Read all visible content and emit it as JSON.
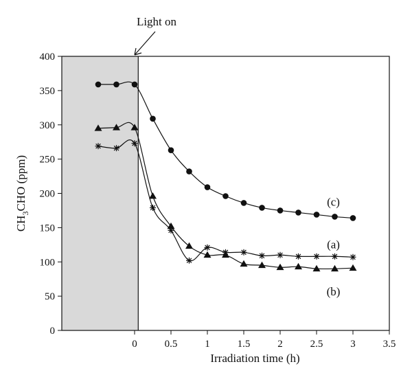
{
  "chart_data": {
    "type": "line",
    "xlabel": "Irradiation time (h)",
    "ylabel": "CH3CHO (ppm)",
    "ylabel_main": "CH",
    "ylabel_sub": "3",
    "ylabel_rest": "CHO (ppm)",
    "xlim": [
      -1,
      3.5
    ],
    "ylim": [
      0,
      400
    ],
    "x_ticks": [
      0,
      0.5,
      1,
      1.5,
      2,
      2.5,
      3,
      3.5
    ],
    "x_tick_labels": [
      "0",
      "0.5",
      "1",
      "1.5",
      "2",
      "2.5",
      "3",
      "3.5"
    ],
    "y_ticks": [
      0,
      50,
      100,
      150,
      200,
      250,
      300,
      350,
      400
    ],
    "y_tick_labels": [
      "0",
      "50",
      "100",
      "150",
      "200",
      "250",
      "300",
      "350",
      "400"
    ],
    "dark_region": {
      "x_start": -1,
      "x_end": 0.05,
      "fill": "#d9d9d9"
    },
    "annotation": {
      "text": "Light on",
      "arrow_to_x": 0
    },
    "series": [
      {
        "name": "(c)",
        "marker": "circle",
        "x": [
          -0.5,
          -0.25,
          0,
          0.25,
          0.5,
          0.75,
          1,
          1.25,
          1.5,
          1.75,
          2,
          2.25,
          2.5,
          2.75,
          3
        ],
        "y": [
          359,
          359,
          359,
          309,
          263,
          232,
          209,
          196,
          186,
          179,
          175,
          172,
          169,
          166,
          164
        ],
        "label_x": 2.75,
        "label_y": 188
      },
      {
        "name": "(a)",
        "marker": "star",
        "x": [
          -0.5,
          -0.25,
          0,
          0.25,
          0.5,
          0.75,
          1,
          1.25,
          1.5,
          1.75,
          2,
          2.25,
          2.5,
          2.75,
          3
        ],
        "y": [
          269,
          266,
          273,
          179,
          146,
          102,
          121,
          114,
          114,
          109,
          110,
          108,
          108,
          108,
          107
        ],
        "label_x": 2.75,
        "label_y": 126
      },
      {
        "name": "(b)",
        "marker": "triangle",
        "x": [
          -0.5,
          -0.25,
          0,
          0.25,
          0.5,
          0.75,
          1,
          1.25,
          1.5,
          1.75,
          2,
          2.25,
          2.5,
          2.75,
          3
        ],
        "y": [
          295,
          296,
          296,
          196,
          152,
          123,
          110,
          110,
          97,
          95,
          92,
          93,
          90,
          90,
          91
        ],
        "label_x": 2.75,
        "label_y": 57
      }
    ]
  }
}
